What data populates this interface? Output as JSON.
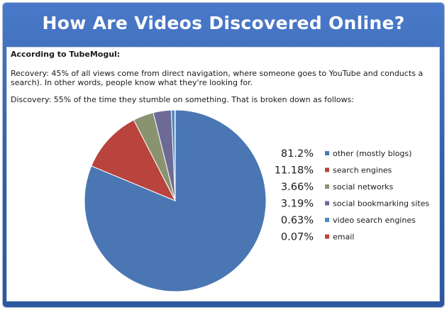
{
  "header": {
    "title": "How Are Videos Discovered Online?"
  },
  "body": {
    "subheading": "According to TubeMogul:",
    "paragraph_recovery": "Recovery: 45% of all views come from direct navigation, where someone goes to YouTube and conducts a search).  In other words, people know what they're looking for.",
    "paragraph_discovery": "Discovery: 55% of the time they stumble on something.  That is broken down as follows:"
  },
  "chart_data": {
    "type": "pie",
    "labels": [
      "other (mostly blogs)",
      "search engines",
      "social networks",
      "social bookmarking sites",
      "video search engines",
      "email"
    ],
    "values": [
      81.2,
      11.18,
      3.66,
      3.19,
      0.63,
      0.07
    ],
    "value_labels": [
      "81.2%",
      "11.18%",
      "3.66%",
      "3.19%",
      "0.63%",
      "0.07%"
    ],
    "colors": [
      "#4a77b4",
      "#b9433d",
      "#8a9370",
      "#6d6a96",
      "#4e8ac3",
      "#b9433d"
    ],
    "legend_position": "right"
  }
}
